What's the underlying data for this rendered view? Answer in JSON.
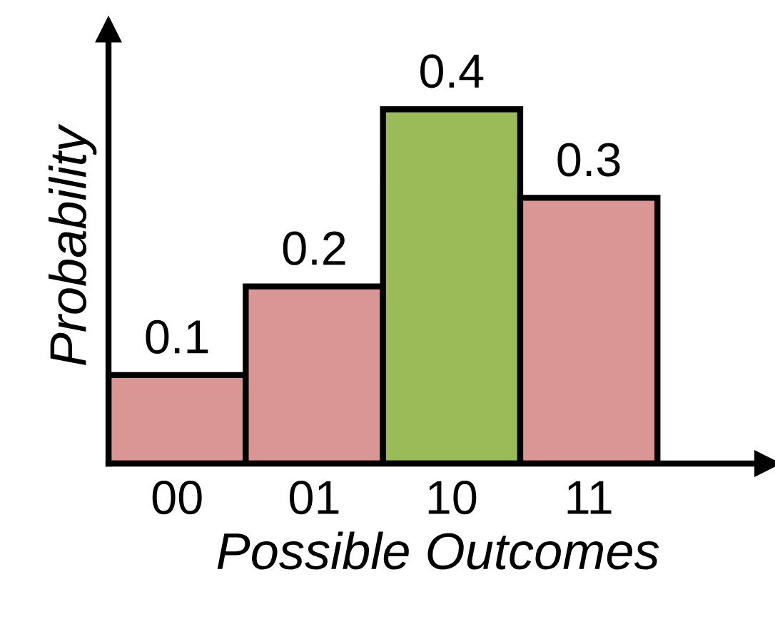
{
  "chart_data": {
    "type": "bar",
    "xlabel": "Possible Outcomes",
    "ylabel": "Probability",
    "categories": [
      "00",
      "01",
      "10",
      "11"
    ],
    "values": [
      0.1,
      0.2,
      0.4,
      0.3
    ],
    "colors": [
      "#d99694",
      "#d99694",
      "#9bbb59",
      "#d99694"
    ],
    "ylim": [
      0,
      0.49
    ],
    "data_labels": true,
    "grid": false,
    "legend": false
  }
}
